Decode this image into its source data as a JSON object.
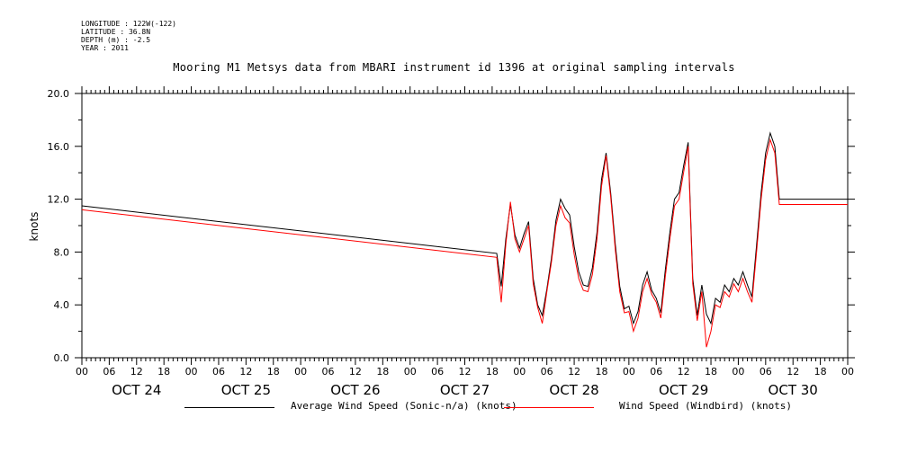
{
  "meta": {
    "longitude": "LONGITUDE : 122W(-122)",
    "latitude": "LATITUDE : 36.8N",
    "depth": "DEPTH (m) : -2.5",
    "year": "YEAR : 2011"
  },
  "chart_data": {
    "type": "line",
    "title": "Mooring M1 Metsys data from MBARI instrument id 1396 at original sampling intervals",
    "ylabel": "knots",
    "xlabel": "",
    "ylim": [
      0,
      20
    ],
    "yticks": [
      "0.0",
      "4.0",
      "8.0",
      "12.0",
      "16.0",
      "20.0"
    ],
    "xlim_hours": [
      0,
      168
    ],
    "x_hour_ticks": [
      "00",
      "06",
      "12",
      "18",
      "00",
      "06",
      "12",
      "18",
      "00",
      "06",
      "12",
      "18",
      "00",
      "06",
      "12",
      "18",
      "00",
      "06",
      "12",
      "18",
      "00",
      "06",
      "12",
      "18",
      "00",
      "06",
      "12",
      "18",
      "00"
    ],
    "x_day_labels": [
      "OCT 24",
      "OCT 25",
      "OCT 26",
      "OCT 27",
      "OCT 28",
      "OCT 29",
      "OCT 30"
    ],
    "series": [
      {
        "name": "Average Wind Speed (Sonic-n/a) (knots)",
        "color": "#000000",
        "x": [
          0,
          91,
          92,
          93,
          94,
          95,
          96,
          97,
          98,
          99,
          100,
          101,
          102,
          103,
          104,
          105,
          106,
          107,
          108,
          109,
          110,
          111,
          112,
          113,
          114,
          115,
          116,
          117,
          118,
          119,
          120,
          121,
          122,
          123,
          124,
          125,
          126,
          127,
          128,
          129,
          130,
          131,
          132,
          133,
          134,
          135,
          136,
          137,
          138,
          139,
          140,
          141,
          142,
          143,
          144,
          145,
          146,
          147,
          148,
          149,
          150,
          151,
          152,
          153,
          154,
          155,
          156,
          157,
          158,
          159,
          160,
          161,
          162,
          163,
          164,
          165,
          166,
          167,
          168
        ],
        "values": [
          11.5,
          7.9,
          5.4,
          9.0,
          11.6,
          9.3,
          8.3,
          9.4,
          10.3,
          6.0,
          4.0,
          3.2,
          5.2,
          7.5,
          10.4,
          12.0,
          11.3,
          10.8,
          8.4,
          6.5,
          5.5,
          5.4,
          6.8,
          9.5,
          13.5,
          15.5,
          12.5,
          8.6,
          5.4,
          3.7,
          3.9,
          2.6,
          3.5,
          5.5,
          6.5,
          5.1,
          4.5,
          3.4,
          6.7,
          9.5,
          12.0,
          12.5,
          14.5,
          16.3,
          6.0,
          3.2,
          5.5,
          3.3,
          2.6,
          4.5,
          4.2,
          5.5,
          5.0,
          6.0,
          5.5,
          6.5,
          5.5,
          4.6,
          8.5,
          12.5,
          15.5,
          17.0,
          16.0,
          12.0,
          12.0,
          12.0,
          12.0,
          12.0,
          12.0,
          12.0,
          12.0,
          12.0,
          12.0,
          12.0,
          12.0,
          12.0,
          12.0,
          12.0,
          12.0
        ]
      },
      {
        "name": "Wind Speed (Windbird) (knots)",
        "color": "#ff0000",
        "x": [
          0,
          91,
          92,
          93,
          94,
          95,
          96,
          97,
          98,
          99,
          100,
          101,
          102,
          103,
          104,
          105,
          106,
          107,
          108,
          109,
          110,
          111,
          112,
          113,
          114,
          115,
          116,
          117,
          118,
          119,
          120,
          121,
          122,
          123,
          124,
          125,
          126,
          127,
          128,
          129,
          130,
          131,
          132,
          133,
          134,
          135,
          136,
          137,
          138,
          139,
          140,
          141,
          142,
          143,
          144,
          145,
          146,
          147,
          148,
          149,
          150,
          151,
          152,
          153,
          154,
          155,
          156,
          157,
          158,
          159,
          160,
          161,
          162,
          163,
          164,
          165,
          166,
          167,
          168
        ],
        "values": [
          11.2,
          7.6,
          4.2,
          8.6,
          11.8,
          9.0,
          8.0,
          9.0,
          10.0,
          5.6,
          3.8,
          2.6,
          5.0,
          7.2,
          10.0,
          11.5,
          10.6,
          10.2,
          7.8,
          6.0,
          5.1,
          5.0,
          6.3,
          9.0,
          13.0,
          15.3,
          12.2,
          8.2,
          5.0,
          3.4,
          3.5,
          2.0,
          3.0,
          5.0,
          6.0,
          4.8,
          4.2,
          3.0,
          6.2,
          9.0,
          11.5,
          12.0,
          14.0,
          16.0,
          5.6,
          2.8,
          5.0,
          0.8,
          2.0,
          4.0,
          3.8,
          5.0,
          4.6,
          5.6,
          5.0,
          6.0,
          5.0,
          4.2,
          8.0,
          12.0,
          15.0,
          16.5,
          15.5,
          11.6,
          11.6,
          11.6,
          11.6,
          11.6,
          11.6,
          11.6,
          11.6,
          11.6,
          11.6,
          11.6,
          11.6,
          11.6,
          11.6,
          11.6,
          11.6
        ]
      }
    ]
  }
}
